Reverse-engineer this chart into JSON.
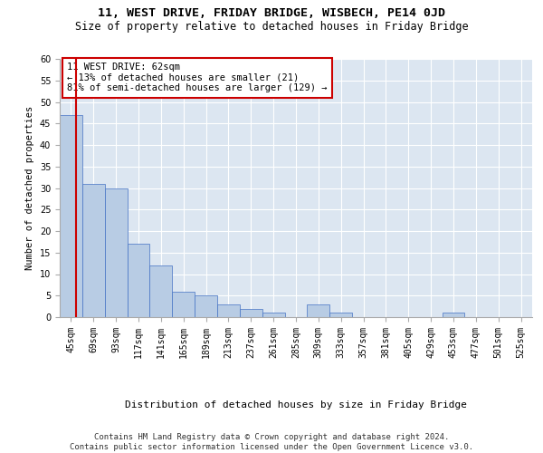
{
  "title1": "11, WEST DRIVE, FRIDAY BRIDGE, WISBECH, PE14 0JD",
  "title2": "Size of property relative to detached houses in Friday Bridge",
  "xlabel": "Distribution of detached houses by size in Friday Bridge",
  "ylabel": "Number of detached properties",
  "categories": [
    "45sqm",
    "69sqm",
    "93sqm",
    "117sqm",
    "141sqm",
    "165sqm",
    "189sqm",
    "213sqm",
    "237sqm",
    "261sqm",
    "285sqm",
    "309sqm",
    "333sqm",
    "357sqm",
    "381sqm",
    "405sqm",
    "429sqm",
    "453sqm",
    "477sqm",
    "501sqm",
    "525sqm"
  ],
  "values": [
    47,
    31,
    30,
    17,
    12,
    6,
    5,
    3,
    2,
    1,
    0,
    3,
    1,
    0,
    0,
    0,
    0,
    1,
    0,
    0,
    0
  ],
  "bar_color": "#b8cce4",
  "bar_edge_color": "#4472c4",
  "ylim": [
    0,
    60
  ],
  "yticks": [
    0,
    5,
    10,
    15,
    20,
    25,
    30,
    35,
    40,
    45,
    50,
    55,
    60
  ],
  "annotation_box_text": "11 WEST DRIVE: 62sqm\n← 13% of detached houses are smaller (21)\n81% of semi-detached houses are larger (129) →",
  "red_line_color": "#cc0000",
  "footer_line1": "Contains HM Land Registry data © Crown copyright and database right 2024.",
  "footer_line2": "Contains public sector information licensed under the Open Government Licence v3.0.",
  "plot_bg_color": "#dce6f1",
  "title1_fontsize": 9.5,
  "title2_fontsize": 8.5,
  "footer_fontsize": 6.5,
  "ylabel_fontsize": 7.5,
  "xlabel_fontsize": 8,
  "tick_fontsize": 7,
  "ann_fontsize": 7.5
}
